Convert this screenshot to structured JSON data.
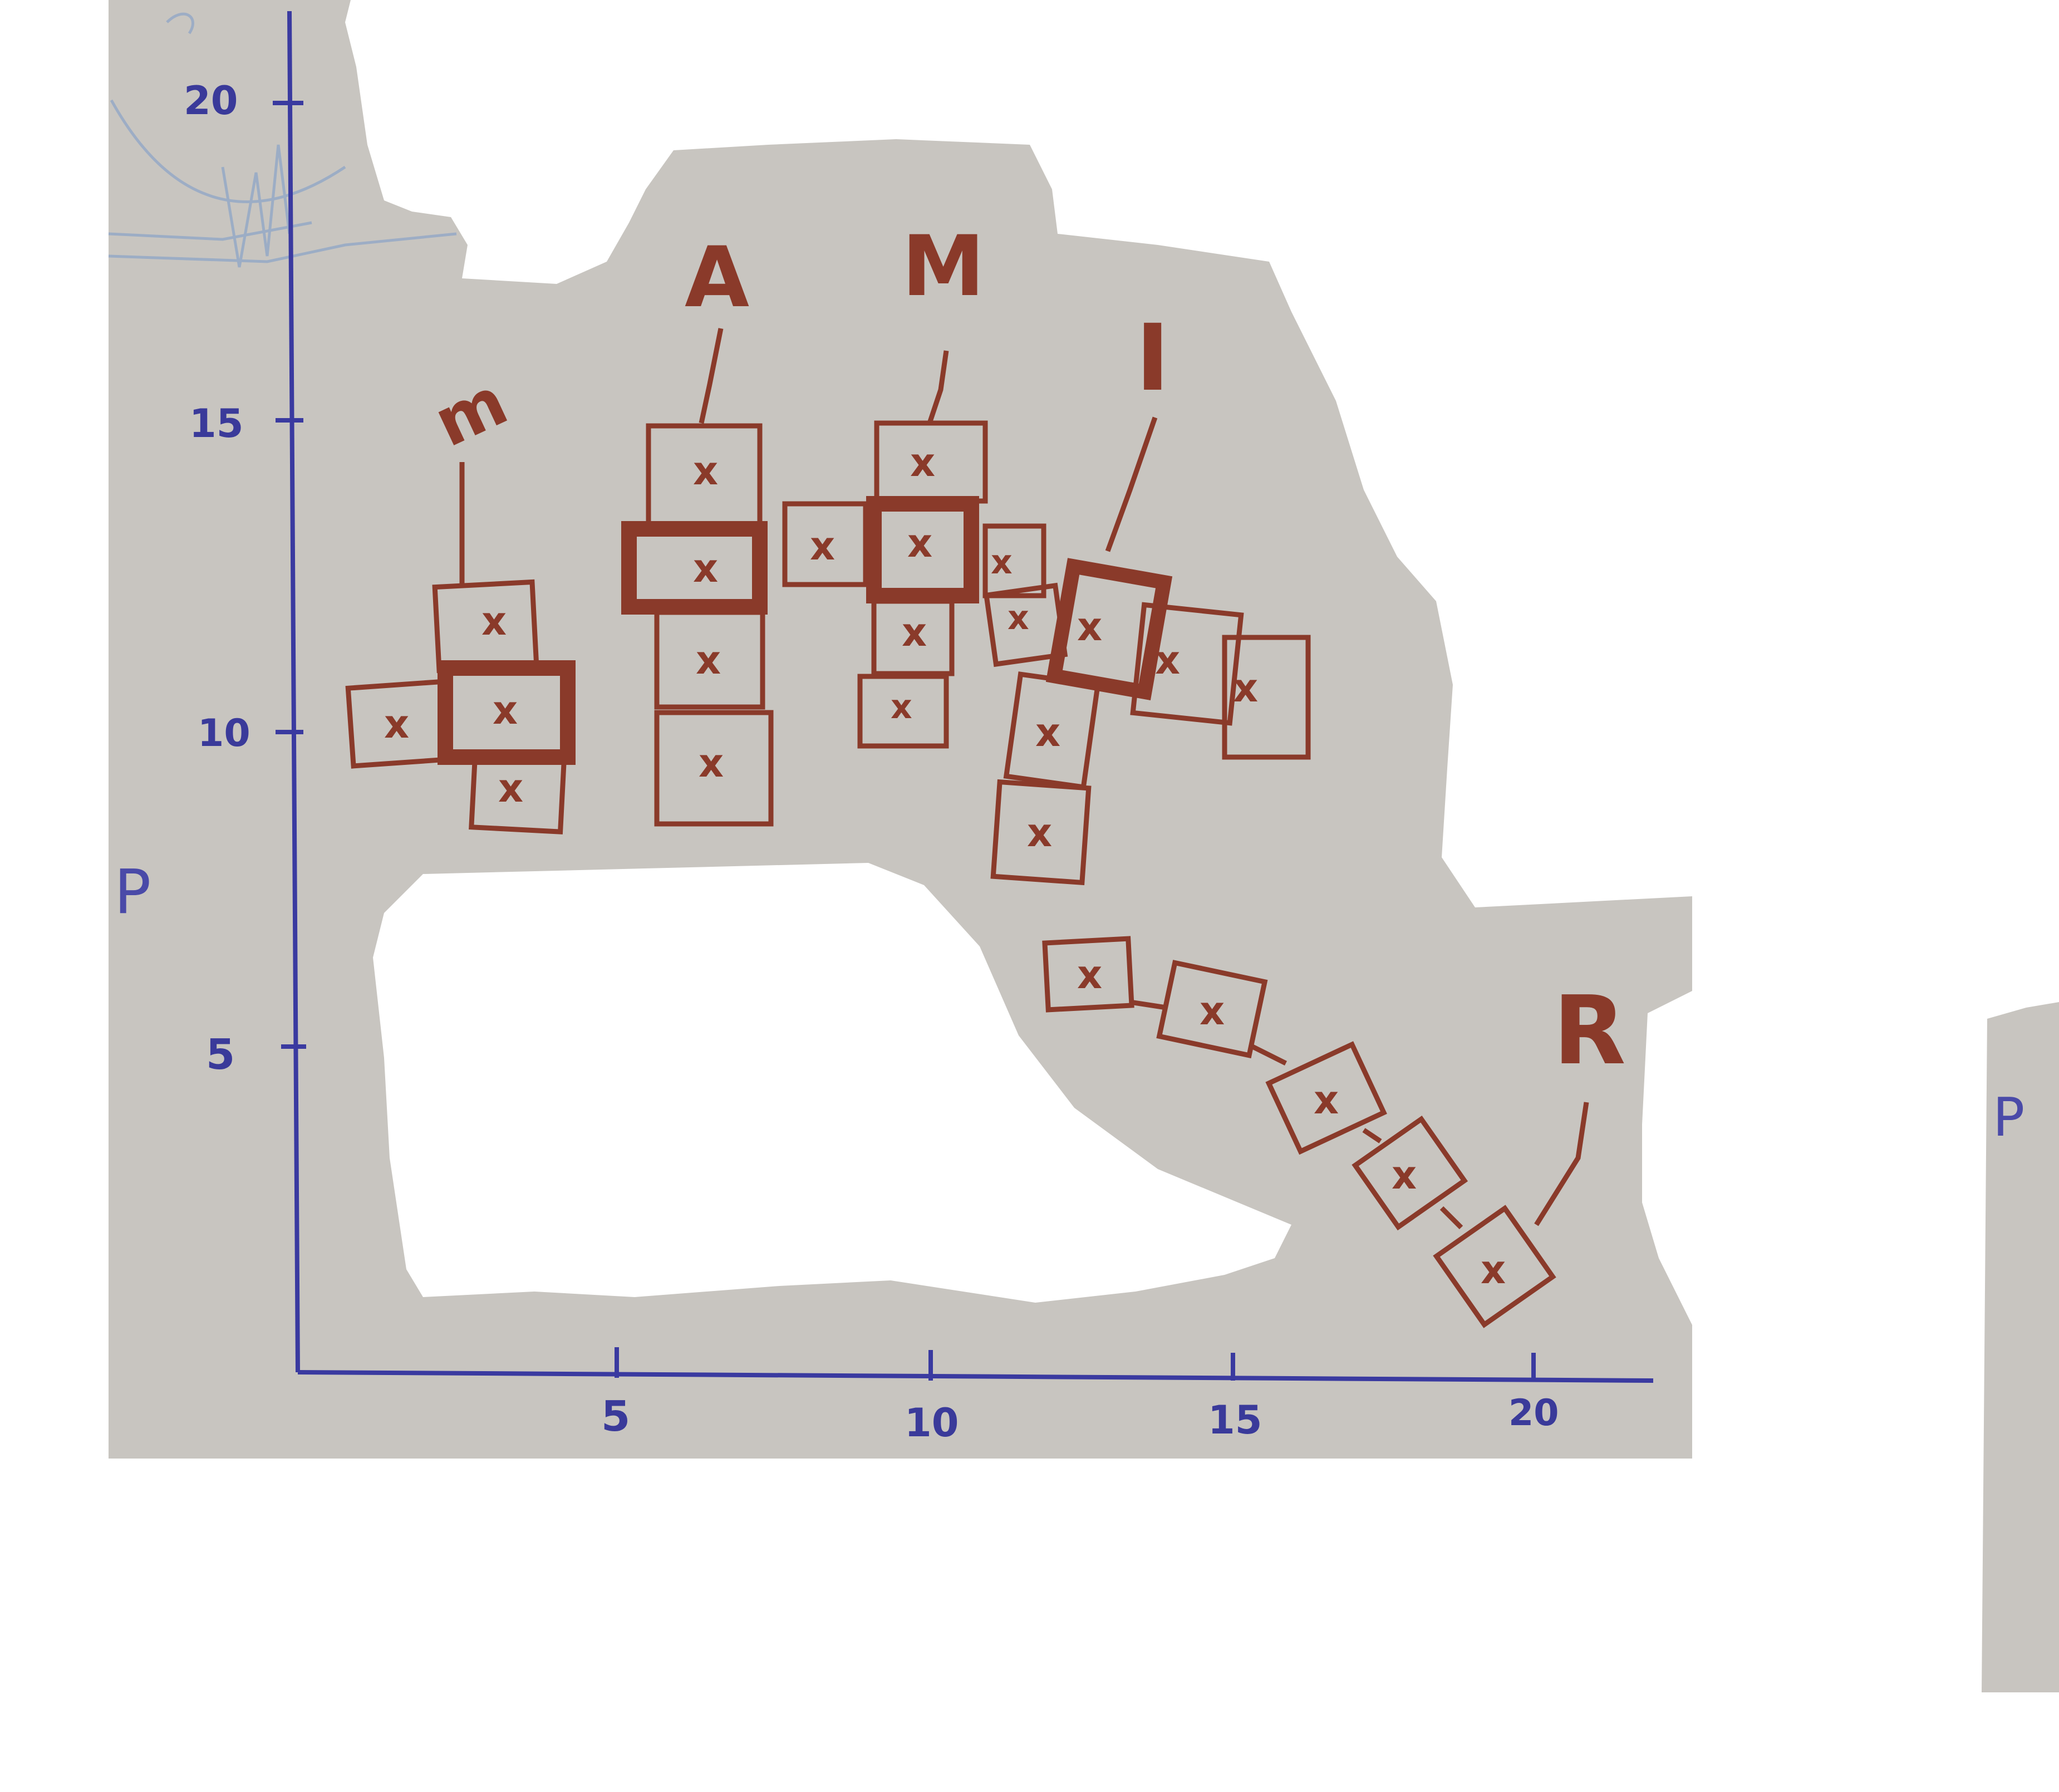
{
  "diagram": {
    "y_axis_label": "P",
    "x_axis_ticks": [
      "5",
      "10",
      "15",
      "20"
    ],
    "y_axis_ticks": [
      "5",
      "10",
      "15",
      "20"
    ],
    "group_labels": {
      "m": "m",
      "a": "A",
      "mm": "M",
      "i": "I",
      "r": "R"
    },
    "cell_mark": "x",
    "colors": {
      "paper": "#c9c6c1",
      "axis": "#3a3aa0",
      "ink": "#8a3a2a"
    }
  }
}
